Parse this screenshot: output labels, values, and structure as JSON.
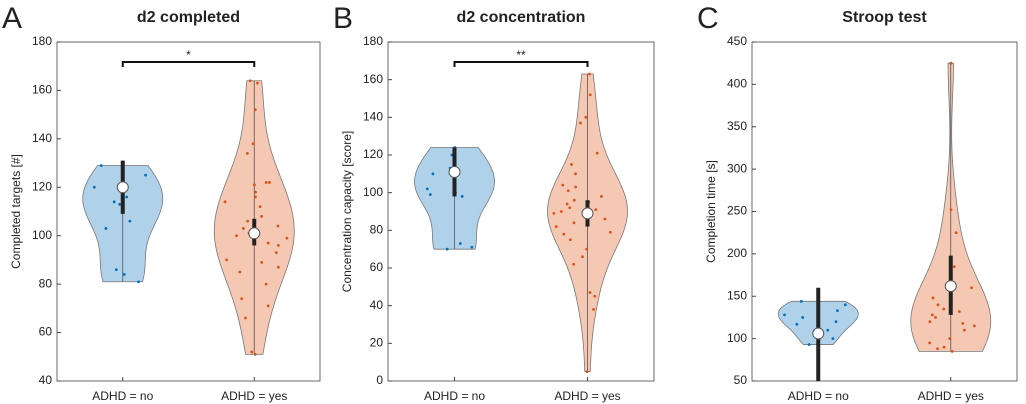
{
  "chart_data": [
    {
      "type": "violin",
      "panel": "A",
      "title": "d2 completed",
      "ylabel": "Completed targets [#]",
      "ylim": [
        40,
        180
      ],
      "yticks": [
        40,
        60,
        80,
        100,
        120,
        140,
        160,
        180
      ],
      "significance": "*",
      "groups": [
        {
          "name": "ADHD = no",
          "fill": "#b0d1ea",
          "color": "#0072bd",
          "median": 120,
          "iqr": [
            109,
            131
          ],
          "points": [
            129,
            125,
            120,
            116,
            114,
            113,
            106,
            103,
            86,
            84,
            81
          ]
        },
        {
          "name": "ADHD = yes",
          "fill": "#f5c8b4",
          "color": "#d95319",
          "median": 101,
          "iqr": [
            96,
            107
          ],
          "points": [
            164,
            163,
            152,
            138,
            134,
            122,
            122,
            121,
            118,
            116,
            114,
            112,
            108,
            106,
            104,
            103,
            101,
            100,
            99,
            97,
            96,
            93,
            90,
            89,
            87,
            85,
            80,
            74,
            71,
            66,
            52,
            51
          ]
        }
      ]
    },
    {
      "type": "violin",
      "panel": "B",
      "title": "d2 concentration",
      "ylabel": "Concentration capacity [score]",
      "ylim": [
        0,
        180
      ],
      "yticks": [
        0,
        20,
        40,
        60,
        80,
        100,
        120,
        140,
        160,
        180
      ],
      "significance": "**",
      "groups": [
        {
          "name": "ADHD = no",
          "fill": "#b0d1ea",
          "color": "#0072bd",
          "median": 111,
          "iqr": [
            98,
            124
          ],
          "points": [
            124,
            120,
            113,
            110,
            102,
            100,
            99,
            98,
            73,
            71,
            70
          ]
        },
        {
          "name": "ADHD = yes",
          "fill": "#f5c8b4",
          "color": "#d95319",
          "median": 89,
          "iqr": [
            82,
            96
          ],
          "points": [
            163,
            152,
            140,
            137,
            121,
            115,
            110,
            104,
            103,
            101,
            98,
            96,
            95,
            94,
            92,
            91,
            90,
            89,
            88,
            86,
            84,
            82,
            79,
            78,
            75,
            70,
            66,
            62,
            47,
            45,
            38,
            5
          ]
        }
      ]
    },
    {
      "type": "violin",
      "panel": "C",
      "title": "Stroop test",
      "ylabel": "Completion time [s]",
      "ylim": [
        50,
        450
      ],
      "yticks": [
        50,
        100,
        150,
        200,
        250,
        300,
        350,
        400,
        450
      ],
      "groups": [
        {
          "name": "ADHD = no",
          "fill": "#b0d1ea",
          "color": "#0072bd",
          "median": 106,
          "iqr": [
            50,
            160
          ],
          "points": [
            144,
            140,
            138,
            133,
            128,
            125,
            120,
            117,
            110,
            100,
            93
          ]
        },
        {
          "name": "ADHD = yes",
          "fill": "#f5c8b4",
          "color": "#d95319",
          "median": 162,
          "iqr": [
            128,
            198
          ],
          "points": [
            425,
            252,
            225,
            185,
            160,
            148,
            140,
            135,
            132,
            128,
            125,
            120,
            118,
            115,
            110,
            100,
            95,
            90,
            88,
            85
          ]
        }
      ]
    }
  ]
}
